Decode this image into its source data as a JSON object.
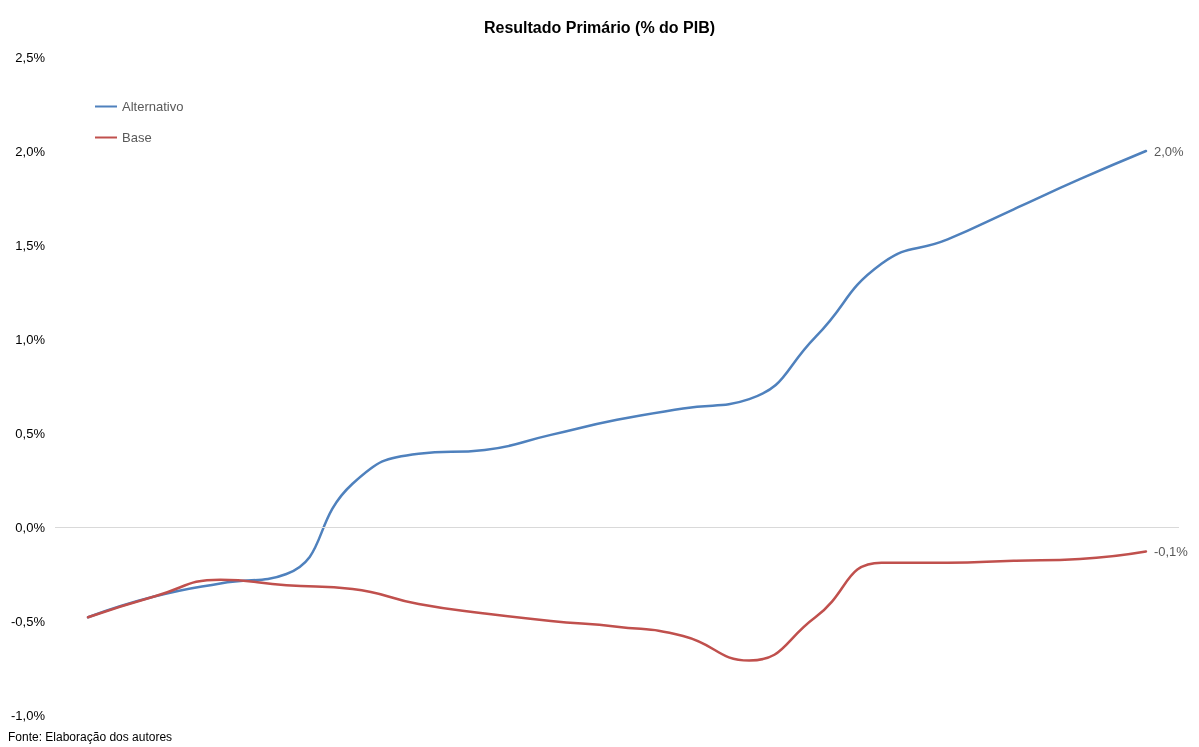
{
  "chart_data": {
    "type": "line",
    "title": "Resultado Primário (% do PIB)",
    "categories": [
      null,
      null,
      null,
      null,
      null,
      null,
      null,
      null,
      null,
      null,
      null,
      null,
      null,
      null,
      null,
      null,
      null
    ],
    "series": [
      {
        "name": "Alternativo",
        "color": "#4f81bd",
        "values": [
          -0.48,
          -0.37,
          -0.3,
          -0.25,
          0.23,
          0.39,
          0.41,
          0.49,
          0.57,
          0.63,
          0.68,
          1.01,
          1.4,
          1.53,
          1.69,
          1.85,
          2.0
        ],
        "value_labels": [
          null,
          null,
          null,
          null,
          null,
          null,
          null,
          null,
          null,
          null,
          null,
          null,
          null,
          null,
          null,
          null,
          "2,0%"
        ]
      },
      {
        "name": "Base",
        "color": "#c0504d",
        "values": [
          -0.48,
          -0.37,
          -0.28,
          -0.31,
          -0.33,
          -0.41,
          -0.46,
          -0.5,
          -0.53,
          -0.58,
          -0.71,
          -0.48,
          -0.19,
          -0.19,
          -0.18,
          -0.17,
          -0.13
        ],
        "value_labels": [
          null,
          null,
          null,
          null,
          null,
          null,
          null,
          null,
          null,
          null,
          null,
          null,
          null,
          null,
          null,
          null,
          "-0,1%"
        ]
      }
    ],
    "ylim": [
      -1,
      2.5
    ],
    "yticks": [
      {
        "value": -1,
        "label": "-1,0%"
      },
      {
        "value": -0.5,
        "label": "-0,5%"
      },
      {
        "value": 0,
        "label": "0,0%"
      },
      {
        "value": 0.5,
        "label": "0,5%"
      },
      {
        "value": 1,
        "label": "1,0%"
      },
      {
        "value": 1.5,
        "label": "1,5%"
      },
      {
        "value": 2,
        "label": "2,0%"
      },
      {
        "value": 2.5,
        "label": "2,5%"
      }
    ],
    "grid": false,
    "ref_lines": [
      {
        "axis": "y",
        "value": 0,
        "color": "#d9d9d9"
      }
    ],
    "legend": "top left",
    "marker": "none",
    "line_style": "solid",
    "annotations": [
      "Fonte: Elaboração dos autores"
    ]
  }
}
